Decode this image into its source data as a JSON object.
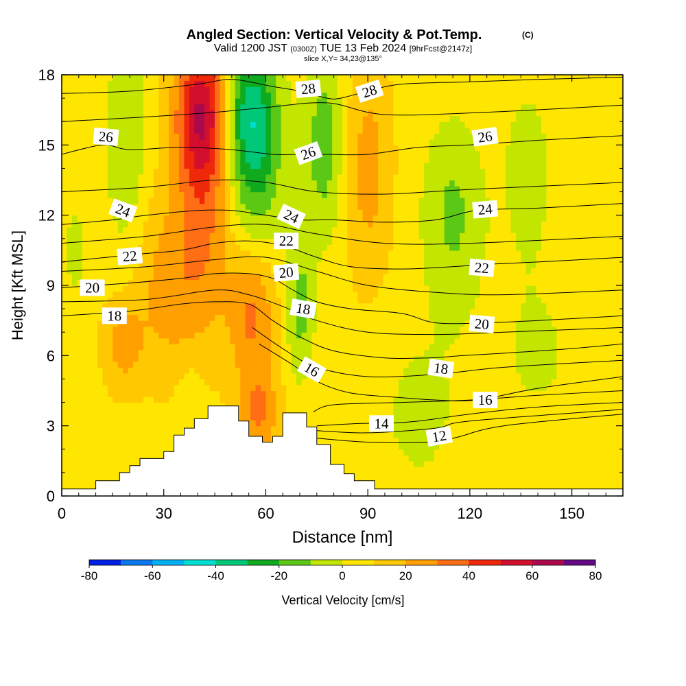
{
  "chart_data": {
    "type": "heatmap",
    "title": {
      "main": "Angled Section: Vertical Velocity & Pot.Temp.",
      "units_note": "(C)",
      "valid_prefix": "Valid 1200 JST",
      "valid_utc": "(0300Z)",
      "valid_date": "TUE 13 Feb 2024",
      "forecast": "[9hrFcst@2147z]",
      "slice": "slice X,Y= 34,23@135°"
    },
    "xlabel": "Distance [nm]",
    "ylabel": "Height [Kft MSL]",
    "xlim": [
      0,
      165
    ],
    "ylim": [
      0,
      18
    ],
    "x_ticks": [
      0,
      30,
      60,
      90,
      120,
      150
    ],
    "y_ticks": [
      0,
      3,
      6,
      9,
      12,
      15,
      18
    ],
    "colorbar": {
      "label": "Vertical Velocity [cm/s]",
      "min": -80,
      "max": 80,
      "step": 10,
      "tick_labels": [
        -80,
        -60,
        -40,
        -20,
        0,
        20,
        40,
        60,
        80
      ],
      "colors": [
        "#0020e6",
        "#0a78f0",
        "#00b2f5",
        "#00e0d2",
        "#00c878",
        "#0faa1e",
        "#5ac814",
        "#c3e600",
        "#ffe600",
        "#ffc800",
        "#ffa000",
        "#ff6e14",
        "#f0280a",
        "#d20f2d",
        "#aa0a4b",
        "#640a82"
      ]
    },
    "terrain": [
      [
        0,
        0.3
      ],
      [
        10,
        0.3
      ],
      [
        10,
        0.65
      ],
      [
        17,
        0.65
      ],
      [
        17,
        1.0
      ],
      [
        20,
        1.0
      ],
      [
        20,
        1.3
      ],
      [
        23,
        1.3
      ],
      [
        23,
        1.6
      ],
      [
        30,
        1.6
      ],
      [
        30,
        1.9
      ],
      [
        33,
        1.9
      ],
      [
        33,
        2.6
      ],
      [
        36,
        2.6
      ],
      [
        36,
        2.9
      ],
      [
        39,
        2.9
      ],
      [
        39,
        3.3
      ],
      [
        43,
        3.3
      ],
      [
        43,
        3.85
      ],
      [
        52,
        3.85
      ],
      [
        52,
        3.2
      ],
      [
        55,
        3.2
      ],
      [
        55,
        2.55
      ],
      [
        59,
        2.55
      ],
      [
        59,
        2.3
      ],
      [
        62,
        2.3
      ],
      [
        62,
        2.55
      ],
      [
        65,
        2.55
      ],
      [
        65,
        3.55
      ],
      [
        72,
        3.55
      ],
      [
        72,
        2.95
      ],
      [
        75,
        2.95
      ],
      [
        75,
        2.2
      ],
      [
        79,
        2.2
      ],
      [
        79,
        1.35
      ],
      [
        83,
        1.35
      ],
      [
        83,
        0.95
      ],
      [
        86,
        0.95
      ],
      [
        86,
        0.65
      ],
      [
        92,
        0.65
      ],
      [
        92,
        0.3
      ],
      [
        165,
        0.3
      ]
    ],
    "velocity_features": [
      {
        "sign": "updraft",
        "center": [
          41,
          16.5
        ],
        "w": 40,
        "extent": [
          8,
          3
        ]
      },
      {
        "sign": "updraft",
        "center": [
          42,
          13
        ],
        "w": 25,
        "extent": [
          8,
          6
        ]
      },
      {
        "sign": "updraft",
        "center": [
          56,
          8
        ],
        "w": 28,
        "extent": [
          7,
          3
        ]
      },
      {
        "sign": "updraft",
        "center": [
          58,
          3.5
        ],
        "w": 24,
        "extent": [
          6,
          2
        ]
      },
      {
        "sign": "updraft",
        "center": [
          31,
          9
        ],
        "w": 18,
        "extent": [
          10,
          4
        ]
      },
      {
        "sign": "updraft",
        "center": [
          18,
          6.5
        ],
        "w": 18,
        "extent": [
          6,
          2
        ]
      },
      {
        "sign": "updraft",
        "center": [
          90,
          14
        ],
        "w": 18,
        "extent": [
          7,
          5
        ]
      },
      {
        "sign": "downdraft",
        "center": [
          55,
          16.5
        ],
        "w": -35,
        "extent": [
          8,
          3
        ]
      },
      {
        "sign": "downdraft",
        "center": [
          57,
          13.5
        ],
        "w": -22,
        "extent": [
          8,
          4
        ]
      },
      {
        "sign": "downdraft",
        "center": [
          77,
          15
        ],
        "w": -22,
        "extent": [
          6,
          4
        ]
      },
      {
        "sign": "downdraft",
        "center": [
          70,
          8
        ],
        "w": -20,
        "extent": [
          4,
          3
        ]
      },
      {
        "sign": "downdraft",
        "center": [
          19,
          15
        ],
        "w": -15,
        "extent": [
          6,
          5
        ]
      },
      {
        "sign": "downdraft",
        "center": [
          115,
          12
        ],
        "w": -18,
        "extent": [
          9,
          4
        ]
      },
      {
        "sign": "downdraft",
        "center": [
          137,
          14
        ],
        "w": -10,
        "extent": [
          8,
          4
        ]
      },
      {
        "sign": "downdraft",
        "center": [
          4,
          10.5
        ],
        "w": -8,
        "extent": [
          4,
          3
        ]
      },
      {
        "sign": "downdraft",
        "center": [
          105,
          3.5
        ],
        "w": -8,
        "extent": [
          14,
          4
        ]
      },
      {
        "sign": "downdraft",
        "center": [
          140,
          6
        ],
        "w": -7,
        "extent": [
          15,
          4
        ]
      },
      {
        "sign": "downdraft",
        "center": [
          38,
          4
        ],
        "w": -8,
        "extent": [
          4,
          2
        ]
      }
    ],
    "theta_contours": [
      {
        "value": 12,
        "points": [
          [
            73,
            2.5
          ],
          [
            90,
            2.3
          ],
          [
            108,
            2.3
          ],
          [
            116,
            2.5
          ],
          [
            130,
            3.0
          ],
          [
            165,
            3.5
          ]
        ]
      },
      {
        "value": 13,
        "points": [
          [
            74,
            2.8
          ],
          [
            90,
            2.7
          ],
          [
            110,
            2.9
          ],
          [
            120,
            3.2
          ],
          [
            165,
            3.7
          ]
        ]
      },
      {
        "value": 14,
        "points": [
          [
            75,
            3.0
          ],
          [
            88,
            3.1
          ],
          [
            95,
            3.1
          ],
          [
            105,
            3.2
          ],
          [
            120,
            3.5
          ],
          [
            140,
            3.8
          ],
          [
            165,
            4.0
          ]
        ]
      },
      {
        "value": 15,
        "points": [
          [
            74,
            3.6
          ],
          [
            80,
            3.9
          ],
          [
            100,
            4.0
          ],
          [
            120,
            4.1
          ],
          [
            140,
            4.3
          ],
          [
            165,
            4.5
          ]
        ]
      },
      {
        "value": 16,
        "points": [
          [
            58,
            6.5
          ],
          [
            68,
            5.6
          ],
          [
            75,
            4.9
          ],
          [
            85,
            4.4
          ],
          [
            100,
            4.2
          ],
          [
            110,
            4.1
          ],
          [
            122,
            4.1
          ],
          [
            140,
            4.6
          ],
          [
            165,
            5.1
          ]
        ]
      },
      {
        "value": 17,
        "points": [
          [
            56,
            7.2
          ],
          [
            66,
            6.2
          ],
          [
            75,
            5.5
          ],
          [
            90,
            5.1
          ],
          [
            110,
            5.2
          ],
          [
            130,
            5.5
          ],
          [
            165,
            5.8
          ]
        ]
      },
      {
        "value": 18,
        "points": [
          [
            0,
            7.7
          ],
          [
            20,
            7.9
          ],
          [
            35,
            8.2
          ],
          [
            45,
            8.3
          ],
          [
            55,
            8.2
          ],
          [
            62,
            7.5
          ],
          [
            70,
            6.8
          ],
          [
            80,
            6.2
          ],
          [
            95,
            5.9
          ],
          [
            108,
            5.9
          ],
          [
            118,
            6.0
          ],
          [
            130,
            6.1
          ],
          [
            150,
            6.3
          ],
          [
            165,
            6.5
          ]
        ]
      },
      {
        "value": 19,
        "points": [
          [
            0,
            8.3
          ],
          [
            25,
            8.4
          ],
          [
            45,
            8.8
          ],
          [
            55,
            8.6
          ],
          [
            65,
            8.1
          ],
          [
            75,
            7.5
          ],
          [
            90,
            7.0
          ],
          [
            110,
            6.9
          ],
          [
            130,
            7.0
          ],
          [
            165,
            7.2
          ]
        ]
      },
      {
        "value": 20,
        "points": [
          [
            0,
            8.9
          ],
          [
            20,
            9.1
          ],
          [
            35,
            9.3
          ],
          [
            45,
            9.5
          ],
          [
            55,
            9.5
          ],
          [
            62,
            9.3
          ],
          [
            68,
            8.8
          ],
          [
            75,
            8.3
          ],
          [
            85,
            8.0
          ],
          [
            100,
            7.8
          ],
          [
            110,
            7.4
          ],
          [
            125,
            7.4
          ],
          [
            140,
            7.5
          ],
          [
            165,
            7.7
          ]
        ]
      },
      {
        "value": 21,
        "points": [
          [
            0,
            9.6
          ],
          [
            25,
            9.8
          ],
          [
            45,
            10.1
          ],
          [
            60,
            10.2
          ],
          [
            75,
            9.6
          ],
          [
            90,
            9.0
          ],
          [
            110,
            8.7
          ],
          [
            130,
            8.6
          ],
          [
            165,
            8.8
          ]
        ]
      },
      {
        "value": 22,
        "points": [
          [
            0,
            10.0
          ],
          [
            20,
            10.3
          ],
          [
            35,
            10.5
          ],
          [
            45,
            10.8
          ],
          [
            55,
            10.9
          ],
          [
            65,
            10.7
          ],
          [
            75,
            10.2
          ],
          [
            85,
            9.8
          ],
          [
            100,
            9.7
          ],
          [
            115,
            9.8
          ],
          [
            125,
            9.9
          ],
          [
            140,
            10.0
          ],
          [
            165,
            10.2
          ]
        ]
      },
      {
        "value": 23,
        "points": [
          [
            0,
            10.8
          ],
          [
            25,
            11.1
          ],
          [
            45,
            11.5
          ],
          [
            60,
            11.6
          ],
          [
            75,
            11.2
          ],
          [
            95,
            10.8
          ],
          [
            120,
            10.8
          ],
          [
            165,
            11.1
          ]
        ]
      },
      {
        "value": 24,
        "points": [
          [
            0,
            11.6
          ],
          [
            15,
            11.8
          ],
          [
            25,
            12.0
          ],
          [
            40,
            12.2
          ],
          [
            50,
            12.2
          ],
          [
            60,
            12.0
          ],
          [
            70,
            11.8
          ],
          [
            80,
            11.8
          ],
          [
            95,
            11.7
          ],
          [
            110,
            11.8
          ],
          [
            122,
            12.2
          ],
          [
            140,
            12.3
          ],
          [
            165,
            12.5
          ]
        ]
      },
      {
        "value": 25,
        "points": [
          [
            0,
            13.0
          ],
          [
            25,
            13.2
          ],
          [
            45,
            13.5
          ],
          [
            60,
            13.4
          ],
          [
            75,
            13.0
          ],
          [
            95,
            12.9
          ],
          [
            120,
            13.1
          ],
          [
            165,
            13.4
          ]
        ]
      },
      {
        "value": 26,
        "points": [
          [
            0,
            14.6
          ],
          [
            12,
            15.0
          ],
          [
            20,
            14.8
          ],
          [
            35,
            14.9
          ],
          [
            50,
            14.8
          ],
          [
            62,
            14.6
          ],
          [
            70,
            14.6
          ],
          [
            78,
            14.6
          ],
          [
            90,
            14.6
          ],
          [
            105,
            14.9
          ],
          [
            120,
            15.0
          ],
          [
            140,
            15.2
          ],
          [
            165,
            15.4
          ]
        ]
      },
      {
        "value": 27,
        "points": [
          [
            0,
            16.0
          ],
          [
            25,
            16.2
          ],
          [
            45,
            16.4
          ],
          [
            60,
            16.6
          ],
          [
            78,
            16.8
          ],
          [
            95,
            16.3
          ],
          [
            125,
            16.4
          ],
          [
            165,
            16.7
          ]
        ]
      },
      {
        "value": 28,
        "points": [
          [
            0,
            17.2
          ],
          [
            20,
            17.3
          ],
          [
            40,
            17.6
          ],
          [
            50,
            17.8
          ],
          [
            62,
            17.5
          ],
          [
            70,
            17.3
          ],
          [
            78,
            17.0
          ],
          [
            82,
            17.0
          ],
          [
            90,
            17.3
          ],
          [
            100,
            17.6
          ],
          [
            120,
            17.7
          ],
          [
            140,
            17.8
          ],
          [
            165,
            17.9
          ]
        ]
      }
    ],
    "contour_labels": [
      {
        "text": "28",
        "x": 72.5,
        "y": 17.4,
        "angle": -5
      },
      {
        "text": "28",
        "x": 90.5,
        "y": 17.3,
        "angle": -18
      },
      {
        "text": "26",
        "x": 13,
        "y": 15.35,
        "angle": 5
      },
      {
        "text": "26",
        "x": 72.5,
        "y": 14.65,
        "angle": -20
      },
      {
        "text": "26",
        "x": 124.5,
        "y": 15.35,
        "angle": -8
      },
      {
        "text": "24",
        "x": 18,
        "y": 12.2,
        "angle": 20
      },
      {
        "text": "24",
        "x": 67.5,
        "y": 11.95,
        "angle": 25
      },
      {
        "text": "24",
        "x": 124.5,
        "y": 12.25,
        "angle": -5
      },
      {
        "text": "22",
        "x": 66,
        "y": 10.9,
        "angle": 0
      },
      {
        "text": "22",
        "x": 20,
        "y": 10.25,
        "angle": -5
      },
      {
        "text": "22",
        "x": 123.5,
        "y": 9.75,
        "angle": 5
      },
      {
        "text": "20",
        "x": 9,
        "y": 8.9,
        "angle": 0
      },
      {
        "text": "20",
        "x": 66,
        "y": 9.55,
        "angle": -5
      },
      {
        "text": "20",
        "x": 123.5,
        "y": 7.35,
        "angle": 5
      },
      {
        "text": "18",
        "x": 15.5,
        "y": 7.7,
        "angle": 0
      },
      {
        "text": "18",
        "x": 71,
        "y": 8.0,
        "angle": 10
      },
      {
        "text": "18",
        "x": 111.5,
        "y": 5.45,
        "angle": 8
      },
      {
        "text": "16",
        "x": 73.5,
        "y": 5.4,
        "angle": 30
      },
      {
        "text": "16",
        "x": 124.5,
        "y": 4.1,
        "angle": 0
      },
      {
        "text": "14",
        "x": 94,
        "y": 3.1,
        "angle": 0
      },
      {
        "text": "12",
        "x": 111,
        "y": 2.55,
        "angle": -10
      }
    ]
  }
}
